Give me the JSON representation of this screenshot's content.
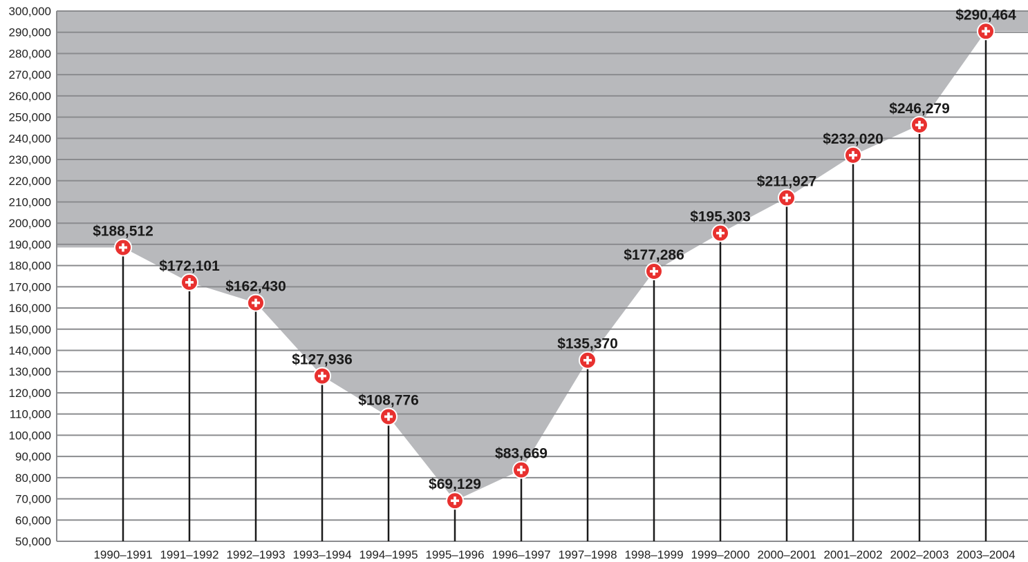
{
  "chart_data": {
    "type": "area",
    "title": "",
    "xlabel": "",
    "ylabel": "",
    "categories": [
      "1990–1991",
      "1991–1992",
      "1992–1993",
      "1993–1994",
      "1994–1995",
      "1995–1996",
      "1996–1997",
      "1997–1998",
      "1998–1999",
      "1999–2000",
      "2000–2001",
      "2001–2002",
      "2002–2003",
      "2003–2004"
    ],
    "values": [
      188512,
      172101,
      162430,
      127936,
      108776,
      69129,
      83669,
      135370,
      177286,
      195303,
      211927,
      232020,
      246279,
      290464
    ],
    "data_labels": [
      "$188,512",
      "$172,101",
      "$162,430",
      "$127,936",
      "$108,776",
      "$69,129",
      "$83,669",
      "$135,370",
      "$177,286",
      "$195,303",
      "$211,927",
      "$232,020",
      "$246,279",
      "$290,464"
    ],
    "yticks": [
      "50,000",
      "60,000",
      "70,000",
      "80,000",
      "90,000",
      "100,000",
      "110,000",
      "120,000",
      "130,000",
      "140,000",
      "150,000",
      "160,000",
      "170,000",
      "180,000",
      "190,000",
      "200,000",
      "210,000",
      "220,000",
      "230,000",
      "240,000",
      "250,000",
      "260,000",
      "270,000",
      "280,000",
      "290,000",
      "300,000"
    ],
    "ylim": [
      50000,
      300000
    ],
    "grid": true,
    "colors": {
      "background_above_line": "#b8b9bc",
      "below_line": "#ffffff",
      "gridline": "#8a8b8e",
      "marker": "#e8312f",
      "stem": "#1a1a1a"
    }
  }
}
